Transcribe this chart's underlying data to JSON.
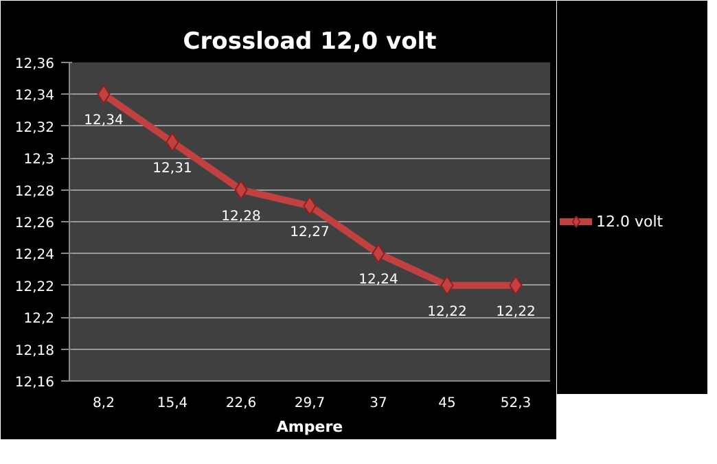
{
  "chart_data": {
    "type": "line",
    "title": "Crossload 12,0 volt",
    "xlabel": "Ampere",
    "categories": [
      "8,2",
      "15,4",
      "22,6",
      "29,7",
      "37",
      "45",
      "52,3"
    ],
    "series": [
      {
        "name": "12.0 volt",
        "color": "#c0413f",
        "values": [
          12.34,
          12.31,
          12.28,
          12.27,
          12.24,
          12.22,
          12.22
        ],
        "value_labels": [
          "12,34",
          "12,31",
          "12,28",
          "12,27",
          "12,24",
          "12,22",
          "12,22"
        ]
      }
    ],
    "ylim": [
      12.16,
      12.36
    ],
    "yticks": [
      {
        "value": 12.16,
        "label": "12,16"
      },
      {
        "value": 12.18,
        "label": "12,18"
      },
      {
        "value": 12.2,
        "label": "12,2"
      },
      {
        "value": 12.22,
        "label": "12,22"
      },
      {
        "value": 12.24,
        "label": "12,24"
      },
      {
        "value": 12.26,
        "label": "12,26"
      },
      {
        "value": 12.28,
        "label": "12,28"
      },
      {
        "value": 12.3,
        "label": "12,3"
      },
      {
        "value": 12.32,
        "label": "12,32"
      },
      {
        "value": 12.34,
        "label": "12,34"
      },
      {
        "value": 12.36,
        "label": "12,36"
      }
    ],
    "grid": "y",
    "legend": "right",
    "marker": "diamond",
    "line_style": "solid"
  }
}
